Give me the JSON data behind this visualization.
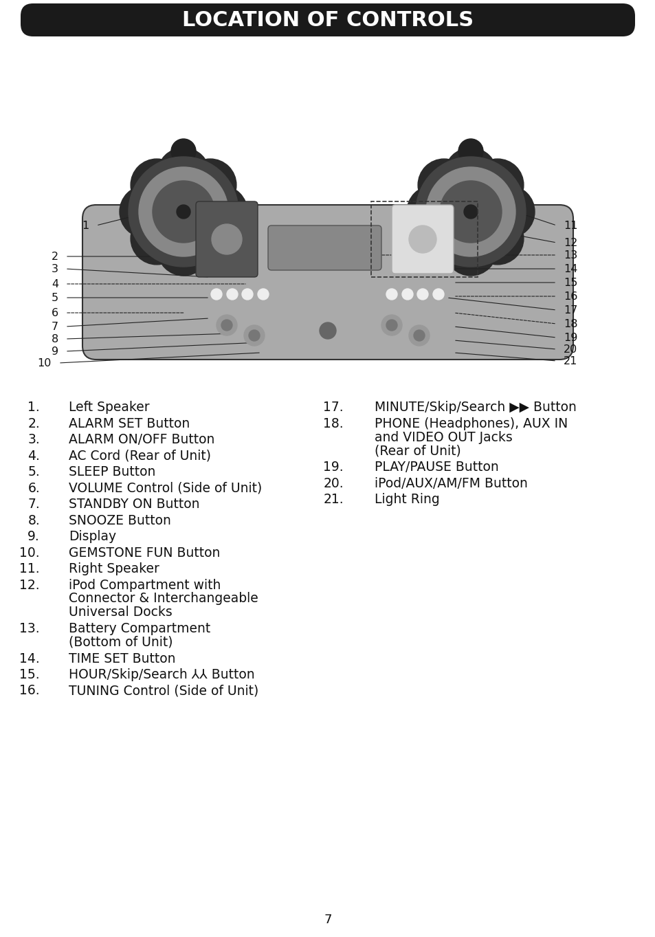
{
  "title": "LOCATION OF CONTROLS",
  "title_bg": "#1a1a1a",
  "title_color": "#ffffff",
  "title_fontsize": 22,
  "page_number": "7",
  "bg_color": "#ffffff",
  "left_items": [
    {
      "num": "1.",
      "text": "Left Speaker"
    },
    {
      "num": "2.",
      "text": "ALARM SET Button"
    },
    {
      "num": "3.",
      "text": "ALARM ON/OFF Button"
    },
    {
      "num": "4.",
      "text": "AC Cord (Rear of Unit)"
    },
    {
      "num": "5.",
      "text": "SLEEP Button"
    },
    {
      "num": "6.",
      "text": "VOLUME Control (Side of Unit)"
    },
    {
      "num": "7.",
      "text": "STANDBY ON Button"
    },
    {
      "num": "8.",
      "text": "SNOOZE Button"
    },
    {
      "num": "9.",
      "text": "Display"
    },
    {
      "num": "10.",
      "text": "GEMSTONE FUN Button"
    },
    {
      "num": "11.",
      "text": "Right Speaker"
    },
    {
      "num": "12.",
      "text": "iPod Compartment with\nConnector & Interchangeable\nUniversal Docks"
    },
    {
      "num": "13.",
      "text": "Battery Compartment\n(Bottom of Unit)"
    },
    {
      "num": "14.",
      "text": "TIME SET Button"
    },
    {
      "num": "15.",
      "text": "HOUR/Skip/Search ⅄⅄ Button"
    },
    {
      "num": "16.",
      "text": "TUNING Control (Side of Unit)"
    }
  ],
  "right_items": [
    {
      "num": "17.",
      "text": "MINUTE/Skip/Search ⧐⧐ Button"
    },
    {
      "num": "18.",
      "text": "PHONE (Headphones), AUX IN\nand VIDEO OUT Jacks\n(Rear of Unit)"
    },
    {
      "num": "19.",
      "text": "PLAY/PAUSE Button"
    },
    {
      "num": "20.",
      "text": "iPod/AUX/AM/FM Button"
    },
    {
      "num": "21.",
      "text": "Light Ring"
    }
  ],
  "item_fontsize": 13.5,
  "label_fontsize": 11.5,
  "diagram_image_placeholder": true
}
